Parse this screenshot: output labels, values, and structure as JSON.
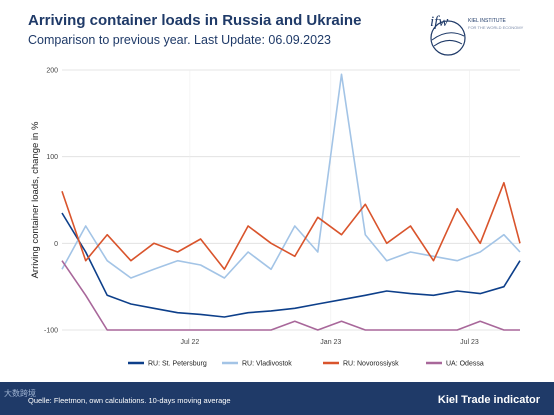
{
  "header": {
    "title": "Arriving container loads in Russia and Ukraine",
    "subtitle": "Comparison to previous year. Last Update: 06.09.2023"
  },
  "logo": {
    "mark": "ifw",
    "line1": "KIEL INSTITUTE",
    "line2": "FOR THE WORLD ECONOMY"
  },
  "footer": {
    "source": "Quelle: Fleetmon, own calculations. 10-days moving average",
    "brand": "Kiel Trade indicator",
    "watermark": "大数跨境"
  },
  "colors": {
    "st_petersburg": "#0d3f8a",
    "vladivostok": "#a3c4e6",
    "novorossiysk": "#d9542c",
    "odessa": "#a8679a",
    "footer_bg": "#1f3a68"
  },
  "chart_data": {
    "type": "line",
    "title": "Arriving container loads in Russia and Ukraine",
    "xlabel": "",
    "ylabel": "Arriving container loads, change in %",
    "x_ticks": [
      "Jul 22",
      "Jan 23",
      "Jul 23"
    ],
    "x_range": [
      "2022-01-15",
      "2023-09-05"
    ],
    "ylim": [
      -100,
      200
    ],
    "y_ticks": [
      -100,
      0,
      100,
      200
    ],
    "grid": true,
    "legend_position": "bottom",
    "x": [
      "2022-01-15",
      "2022-02-15",
      "2022-03-15",
      "2022-04-15",
      "2022-05-15",
      "2022-06-15",
      "2022-07-15",
      "2022-08-15",
      "2022-09-15",
      "2022-10-15",
      "2022-11-15",
      "2022-12-15",
      "2023-01-15",
      "2023-02-15",
      "2023-03-15",
      "2023-04-15",
      "2023-05-15",
      "2023-06-15",
      "2023-07-15",
      "2023-08-15",
      "2023-09-05"
    ],
    "series": [
      {
        "name": "RU: St. Petersburg",
        "color_key": "st_petersburg",
        "values": [
          35,
          -10,
          -60,
          -70,
          -75,
          -80,
          -82,
          -85,
          -80,
          -78,
          -75,
          -70,
          -65,
          -60,
          -55,
          -58,
          -60,
          -55,
          -58,
          -50,
          -20
        ]
      },
      {
        "name": "RU: Vladivostok",
        "color_key": "vladivostok",
        "values": [
          -30,
          20,
          -20,
          -40,
          -30,
          -20,
          -25,
          -40,
          -10,
          -30,
          20,
          -10,
          195,
          10,
          -20,
          -10,
          -15,
          -20,
          -10,
          10,
          -10
        ]
      },
      {
        "name": "RU: Novorossiysk",
        "color_key": "novorossiysk",
        "values": [
          60,
          -20,
          10,
          -20,
          0,
          -10,
          5,
          -30,
          20,
          0,
          -15,
          30,
          10,
          45,
          0,
          20,
          -20,
          40,
          0,
          70,
          0
        ]
      },
      {
        "name": "UA: Odessa",
        "color_key": "odessa",
        "values": [
          -20,
          -60,
          -100,
          -100,
          -100,
          -100,
          -100,
          -100,
          -100,
          -100,
          -90,
          -100,
          -90,
          -100,
          -100,
          -100,
          -100,
          -100,
          -90,
          -100,
          -100
        ]
      }
    ]
  }
}
